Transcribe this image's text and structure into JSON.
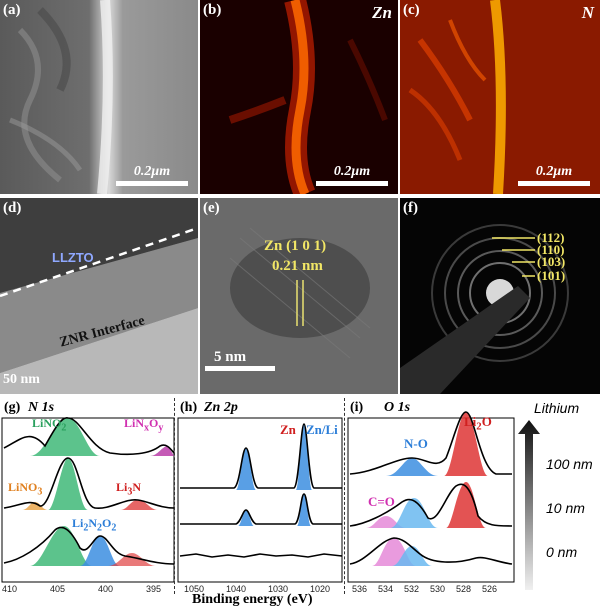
{
  "panels": {
    "a": {
      "label": "(a)",
      "scale": "0.2μm"
    },
    "b": {
      "label": "(b)",
      "element": "Zn",
      "scale": "0.2μm"
    },
    "c": {
      "label": "(c)",
      "element": "N",
      "scale": "0.2μm"
    },
    "d": {
      "label": "(d)",
      "layer": "LLZTO",
      "interface": "ZNR Interface",
      "scale": "50 nm"
    },
    "e": {
      "label": "(e)",
      "plane": "Zn (1 0 1)",
      "spacing": "0.21 nm",
      "scale": "5 nm"
    },
    "f": {
      "label": "(f)",
      "rings": [
        "(112)",
        "(110)",
        "(103)",
        "(101)"
      ]
    }
  },
  "xps": {
    "g": {
      "label": "(g)",
      "core": "N 1s",
      "ticks": [
        "410",
        "405",
        "400",
        "395"
      ],
      "species": [
        "LiNO2",
        "LiNxOy",
        "LiNO3",
        "Li3N",
        "Li2N2O2"
      ]
    },
    "h": {
      "label": "(h)",
      "core": "Zn 2p",
      "ticks": [
        "1050",
        "1040",
        "1030",
        "1020"
      ],
      "species": [
        "Zn",
        "Zn/Li"
      ]
    },
    "i": {
      "label": "(i)",
      "core": "O 1s",
      "ticks": [
        "536",
        "534",
        "532",
        "530",
        "528",
        "526"
      ],
      "species": [
        "Li2O",
        "N-O",
        "C=O"
      ]
    },
    "xlabel": "Binding energy (eV)"
  },
  "depth": {
    "title": "Lithium",
    "levels": [
      "100 nm",
      "10 nm",
      "0 nm"
    ]
  }
}
